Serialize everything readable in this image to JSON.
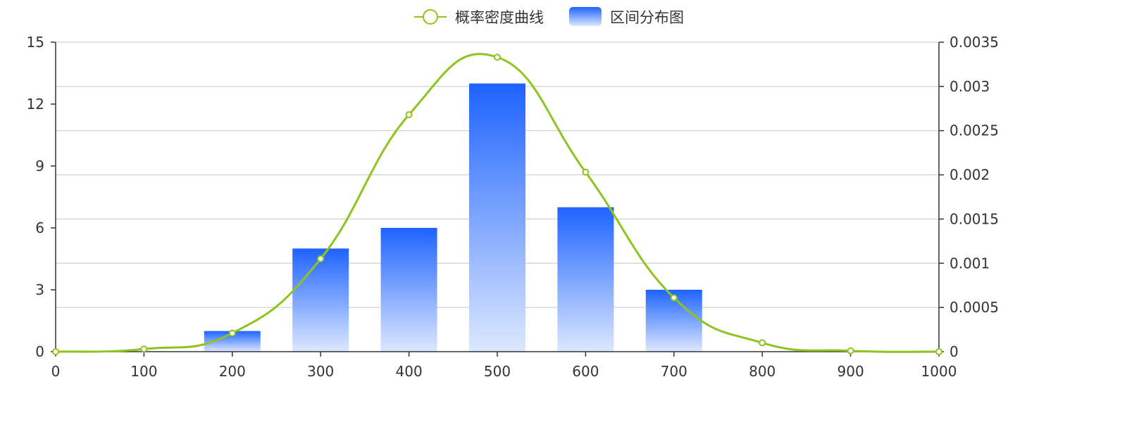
{
  "chart_data": {
    "type": "bar",
    "title": "",
    "legend": {
      "placement": "top-center",
      "items": [
        {
          "key": "line",
          "label": "概率密度曲线",
          "color": "#8fc31f"
        },
        {
          "key": "bar",
          "label": "区间分布图",
          "color": "#1e63ff"
        }
      ]
    },
    "x_axis": {
      "min": 0,
      "max": 1000,
      "ticks": [
        0,
        100,
        200,
        300,
        400,
        500,
        600,
        700,
        800,
        900,
        1000
      ]
    },
    "y_left": {
      "min": 0,
      "max": 15,
      "ticks": [
        0,
        3,
        6,
        9,
        12,
        15
      ],
      "tick_labels": [
        "0",
        "3",
        "6",
        "9",
        "12",
        "15"
      ]
    },
    "y_right": {
      "min": 0,
      "max": 0.0035,
      "ticks": [
        0,
        0.0005,
        0.001,
        0.0015,
        0.002,
        0.0025,
        0.003,
        0.0035
      ],
      "tick_labels": [
        "0",
        "0.0005",
        "0.001",
        "0.0015",
        "0.002",
        "0.0025",
        "0.003",
        "0.0035"
      ]
    },
    "grid": true,
    "bars": {
      "name": "区间分布图",
      "axis": "left",
      "color_top": "#1e63ff",
      "color_bottom": "#dde8ff",
      "x": [
        200,
        300,
        400,
        500,
        600,
        700
      ],
      "values": [
        1,
        5,
        6,
        13,
        7,
        3
      ]
    },
    "line": {
      "name": "概率密度曲线",
      "axis": "right",
      "color": "#8fc31f",
      "smooth": true,
      "points": [
        {
          "x": 0,
          "y": 0.0
        },
        {
          "x": 100,
          "y": 3e-05
        },
        {
          "x": 200,
          "y": 0.00021
        },
        {
          "x": 300,
          "y": 0.00105
        },
        {
          "x": 400,
          "y": 0.00268
        },
        {
          "x": 500,
          "y": 0.00333
        },
        {
          "x": 600,
          "y": 0.00203
        },
        {
          "x": 700,
          "y": 0.00061
        },
        {
          "x": 800,
          "y": 0.0001
        },
        {
          "x": 900,
          "y": 1e-05
        },
        {
          "x": 1000,
          "y": 0.0
        }
      ]
    }
  }
}
